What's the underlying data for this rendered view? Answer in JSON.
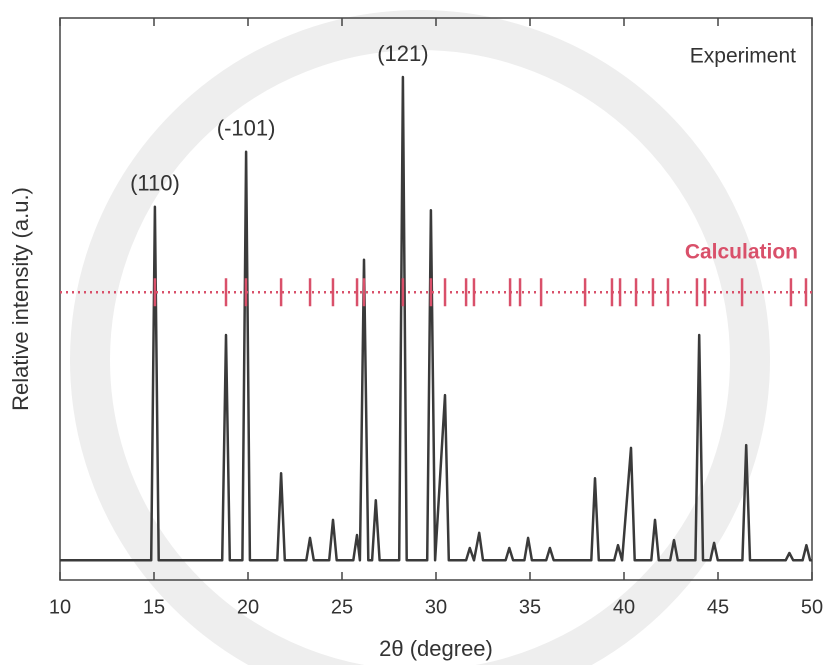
{
  "chart_data": {
    "type": "line",
    "xlabel": "2θ (degree)",
    "ylabel": "Relative intensity (a.u.)",
    "xlim": [
      10,
      50
    ],
    "xticks": [
      10,
      15,
      20,
      25,
      30,
      35,
      40,
      45,
      50
    ],
    "ylim": [
      0,
      100
    ],
    "legend": "top-right",
    "series": [
      {
        "name": "Experiment",
        "color": "#3a3a3a",
        "x": [
          10,
          14.85,
          15.05,
          15.25,
          18.63,
          18.83,
          19.03,
          19.7,
          19.9,
          20.1,
          21.56,
          21.76,
          21.96,
          23.1,
          23.3,
          23.5,
          24.32,
          24.52,
          24.72,
          25.6,
          25.8,
          25.95,
          26.17,
          26.4,
          26.6,
          26.8,
          27.0,
          28.04,
          28.24,
          28.44,
          29.53,
          29.73,
          29.95,
          30.48,
          30.68,
          31.6,
          31.8,
          32.02,
          32.3,
          32.5,
          33.7,
          33.9,
          34.1,
          34.7,
          34.9,
          35.1,
          35.86,
          36.06,
          36.26,
          38.26,
          38.46,
          38.66,
          39.48,
          39.68,
          39.9,
          40.37,
          40.57,
          41.45,
          41.65,
          41.85,
          42.46,
          42.66,
          42.86,
          43.8,
          44.0,
          44.2,
          44.59,
          44.79,
          44.99,
          46.3,
          46.5,
          46.7,
          48.6,
          48.8,
          49.0,
          49.5,
          49.7,
          49.9,
          50
        ],
        "values": [
          3.5,
          3.5,
          66.4,
          3.5,
          3.5,
          43.6,
          3.5,
          3.5,
          76.2,
          3.5,
          3.5,
          19,
          3.5,
          3.5,
          7.5,
          3.5,
          3.5,
          10.7,
          3.5,
          3.5,
          8,
          3.5,
          57,
          3.5,
          3.5,
          14.2,
          3.5,
          3.5,
          89.5,
          3.5,
          3.5,
          65.8,
          3.5,
          32.9,
          3.5,
          3.5,
          5.7,
          3.5,
          8.4,
          3.5,
          3.5,
          5.7,
          3.5,
          3.5,
          7.5,
          3.5,
          3.5,
          5.7,
          3.5,
          3.5,
          18.1,
          3.5,
          3.5,
          6.2,
          3.5,
          23.5,
          3.5,
          3.5,
          10.7,
          3.5,
          3.5,
          7.1,
          3.5,
          3.5,
          43.6,
          3.5,
          3.5,
          6.6,
          3.5,
          3.5,
          24,
          3.5,
          3.5,
          4.8,
          3.5,
          3.5,
          6.2,
          3.5,
          3.5
        ]
      }
    ],
    "calculation": {
      "name": "Calculation",
      "color": "#d9506a",
      "level": 51.2,
      "x": [
        15.05,
        18.83,
        19.89,
        21.76,
        23.3,
        24.52,
        25.8,
        26.17,
        28.24,
        29.73,
        30.48,
        31.6,
        32.02,
        33.94,
        34.47,
        35.59,
        37.93,
        39.36,
        39.79,
        40.64,
        41.54,
        42.34,
        43.88,
        44.31,
        46.28,
        48.88,
        49.68
      ]
    },
    "peak_labels": [
      {
        "text": "(110)",
        "x": 15.05
      },
      {
        "text": "(-101)",
        "x": 19.9
      },
      {
        "text": "(121)",
        "x": 28.24
      }
    ]
  }
}
